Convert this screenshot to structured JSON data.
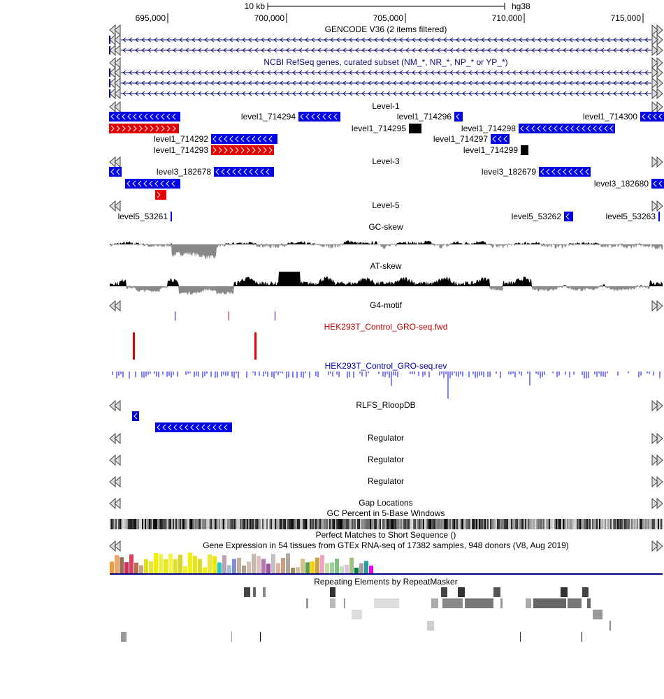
{
  "ruler": {
    "scale": "10 kb",
    "assembly": "hg38",
    "positions": [
      "695,000",
      "700,000",
      "705,000",
      "710,000",
      "715,000"
    ]
  },
  "tracks": [
    {
      "title": "GENCODE V36 (2 items filtered)"
    },
    {
      "title": "NCBI RefSeq genes, curated subset (NM_*, NR_*, NP_* or YP_*)"
    },
    {
      "title": "Level-1",
      "items": [
        "level1_714294",
        "level1_714296",
        "level1_714300",
        "level1_714295",
        "level1_714298",
        "level1_714292",
        "level1_714297",
        "level1_714293",
        "level1_714299"
      ]
    },
    {
      "title": "Level-3",
      "items": [
        "level3_182678",
        "level3_182679",
        "level3_182680"
      ]
    },
    {
      "title": "Level-5",
      "items": [
        "level5_53261",
        "level5_53262",
        "level5_53263"
      ]
    },
    {
      "title": "GC-skew"
    },
    {
      "title": "AT-skew"
    },
    {
      "title": "G4-motif"
    },
    {
      "title": "HEK293T_Control_GRO-seq.fwd"
    },
    {
      "title": "HEK293T_Control_GRO-seq.rev"
    },
    {
      "title": "RLFS_RloopDB"
    },
    {
      "title": "Regulator"
    },
    {
      "title": "Regulator"
    },
    {
      "title": "Regulator"
    },
    {
      "title": "Gap Locations"
    },
    {
      "title": "GC Percent in 5-Base Windows"
    },
    {
      "title": "Perfect Matches to Short Sequence ()"
    },
    {
      "title": "Gene Expression in 54 tissues from GTEx RNA-seq of 17382 samples, 948 donors (V8, Aug 2019)"
    },
    {
      "title": "Repeating Elements by RepeatMasker"
    }
  ]
}
